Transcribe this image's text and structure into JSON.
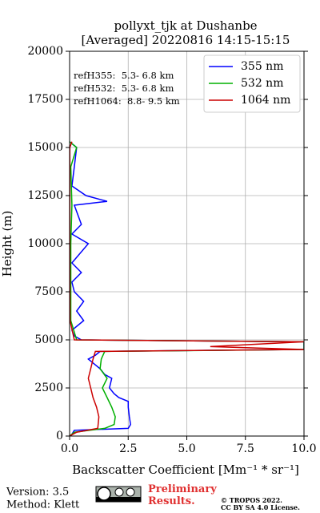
{
  "chart_data": {
    "type": "line",
    "title": "pollyxt_tjk at Dushanbe",
    "subtitle": "[Averaged] 20220816 14:15-15:15",
    "x_label": "Backscatter Coefficient [Mm⁻¹ * sr⁻¹]",
    "y_label": "Height (m)",
    "annotations": [
      "refH355:  5.3- 6.8 km",
      "refH532:  5.3- 6.8 km",
      "refH1064:  8.8- 9.5 km"
    ],
    "xlim": [
      0,
      10
    ],
    "xticks": [
      {
        "value": 0,
        "label": "0.0"
      },
      {
        "value": 2.5,
        "label": "2.5"
      },
      {
        "value": 5,
        "label": "5.0"
      },
      {
        "value": 7.5,
        "label": "7.5"
      },
      {
        "value": 10,
        "label": "10.0"
      }
    ],
    "ylim": [
      0,
      20000
    ],
    "yticks": [
      0,
      2500,
      5000,
      7500,
      10000,
      12500,
      15000,
      17500,
      20000
    ],
    "grid": true,
    "legend": "upper right",
    "series": [
      {
        "name": "355 nm",
        "color": "#0000ff",
        "x": [
          0.05,
          0.2,
          2.5,
          2.6,
          2.55,
          2.5,
          2.5,
          2.1,
          1.9,
          1.7,
          1.8,
          1.5,
          1.3,
          1.0,
          0.8,
          1.1,
          1.3,
          10,
          10,
          10,
          0.5,
          0.2,
          0.1,
          0.6,
          0.3,
          0.6,
          0.2,
          0.1,
          0.5,
          0.1,
          0.8,
          0.1,
          0.5,
          0.2,
          1.6,
          0.7,
          0.1,
          0.2,
          0.3,
          0
        ],
        "y": [
          0,
          300,
          400,
          600,
          1000,
          1500,
          1800,
          2000,
          2200,
          2500,
          3000,
          3200,
          3500,
          3800,
          4000,
          4200,
          4400,
          4500,
          4700,
          4900,
          5000,
          5200,
          5500,
          6000,
          6500,
          7000,
          7500,
          8000,
          8500,
          9000,
          10000,
          10500,
          11000,
          12000,
          12200,
          12500,
          13000,
          14000,
          15000,
          15300
        ]
      },
      {
        "name": "532 nm",
        "color": "#00b000",
        "x": [
          0,
          0.2,
          1.5,
          1.9,
          1.95,
          1.8,
          1.6,
          1.4,
          1.6,
          1.3,
          1.35,
          1.5,
          10,
          10,
          0.3,
          0.05,
          0.05,
          0.05,
          0.1,
          0.05,
          0.3,
          0
        ],
        "y": [
          0,
          200,
          400,
          600,
          1000,
          1500,
          2000,
          2500,
          3000,
          3500,
          4000,
          4400,
          4500,
          4900,
          5000,
          6000,
          8000,
          10000,
          12000,
          14000,
          15000,
          15300
        ]
      },
      {
        "name": "1064 nm",
        "color": "#cc0000",
        "x": [
          0,
          0.3,
          1.2,
          1.25,
          1.15,
          1.0,
          0.9,
          0.8,
          0.9,
          1.0,
          1.1,
          10,
          6,
          10,
          0.2,
          0.02,
          0.01,
          0.01,
          0.01,
          0.1
        ],
        "y": [
          0,
          200,
          400,
          1000,
          1500,
          2000,
          2500,
          3000,
          3500,
          4000,
          4400,
          4500,
          4650,
          4900,
          5000,
          6000,
          9000,
          12000,
          15000,
          15300
        ]
      }
    ]
  },
  "footer": {
    "version": "Version: 3.5",
    "method": "Method: Klett",
    "status": "Preliminary\nResults.",
    "copyright": "© TROPOS 2022.",
    "license": "CC BY SA 4.0 License."
  }
}
